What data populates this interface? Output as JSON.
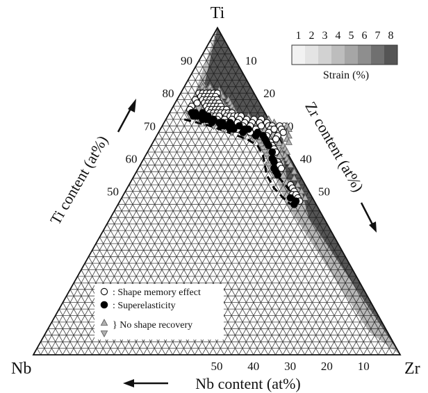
{
  "chart_data": {
    "type": "ternary-scatter",
    "vertices": {
      "top": "Ti",
      "left": "Nb",
      "right": "Zr"
    },
    "axis_labels": {
      "ti": "Ti content (at%)",
      "zr": "Zr content (at%)",
      "nb": "Nb content (at%)"
    },
    "ticks": {
      "ti": [
        "90",
        "80",
        "70",
        "60",
        "50"
      ],
      "zr": [
        "10",
        "20",
        "30",
        "40",
        "50"
      ],
      "nb": [
        "50",
        "40",
        "30",
        "20",
        "10"
      ]
    },
    "colorbar": {
      "title": "Strain (%)",
      "labels": [
        "1",
        "2",
        "3",
        "4",
        "5",
        "6",
        "7",
        "8"
      ],
      "colors": [
        "#f2f2f2",
        "#e4e4e4",
        "#d2d2d2",
        "#bdbdbd",
        "#a6a6a6",
        "#8e8e8e",
        "#707070",
        "#555555"
      ]
    },
    "legend": [
      {
        "marker": "open-circle",
        "label": ": Shape memory effect"
      },
      {
        "marker": "filled-circle",
        "label": ": Superelasticity"
      },
      {
        "marker": "triangles",
        "label": "} No shape recovery"
      }
    ],
    "regions": [
      {
        "name": "high-strain",
        "color": "#555555"
      },
      {
        "name": "medium-strain",
        "color": "#b8b8b8"
      },
      {
        "name": "low-strain",
        "color": "#ffffff"
      }
    ],
    "series": [
      {
        "name": "Shape memory effect",
        "marker": "open-circle",
        "points_ti_zr_at_pct": [
          [
            80,
            5
          ],
          [
            80,
            6
          ],
          [
            80,
            7
          ],
          [
            80,
            8
          ],
          [
            80,
            9
          ],
          [
            80,
            10
          ],
          [
            79,
            6
          ],
          [
            79,
            7
          ],
          [
            79,
            8
          ],
          [
            79,
            9
          ],
          [
            79,
            10
          ],
          [
            78,
            5
          ],
          [
            78,
            7
          ],
          [
            78,
            8
          ],
          [
            78,
            9
          ],
          [
            78,
            10
          ],
          [
            78,
            11
          ],
          [
            77,
            6
          ],
          [
            77,
            8
          ],
          [
            77,
            9
          ],
          [
            77,
            10
          ],
          [
            77,
            11
          ],
          [
            77,
            12
          ],
          [
            76,
            5
          ],
          [
            76,
            9
          ],
          [
            76,
            10
          ],
          [
            76,
            11
          ],
          [
            76,
            12
          ],
          [
            76,
            13
          ],
          [
            75,
            5
          ],
          [
            75,
            10
          ],
          [
            75,
            11
          ],
          [
            75,
            12
          ],
          [
            75,
            13
          ],
          [
            75,
            14
          ],
          [
            75,
            15
          ],
          [
            74,
            11
          ],
          [
            74,
            12
          ],
          [
            74,
            13
          ],
          [
            74,
            14
          ],
          [
            74,
            15
          ],
          [
            74,
            16
          ],
          [
            74,
            17
          ],
          [
            73,
            12
          ],
          [
            73,
            13
          ],
          [
            73,
            14
          ],
          [
            73,
            16
          ],
          [
            73,
            17
          ],
          [
            73,
            18
          ],
          [
            73,
            19
          ],
          [
            73,
            20
          ],
          [
            72,
            14
          ],
          [
            72,
            16
          ],
          [
            72,
            18
          ],
          [
            72,
            20
          ],
          [
            72,
            22
          ],
          [
            72,
            24
          ],
          [
            72,
            26
          ],
          [
            71,
            17
          ],
          [
            71,
            20
          ],
          [
            71,
            22
          ],
          [
            71,
            24
          ],
          [
            71,
            26
          ],
          [
            71,
            28
          ],
          [
            70,
            18
          ],
          [
            70,
            22
          ],
          [
            70,
            24
          ],
          [
            70,
            27
          ],
          [
            70,
            29
          ],
          [
            70,
            30
          ],
          [
            70,
            32
          ],
          [
            69,
            21
          ],
          [
            69,
            26
          ],
          [
            69,
            30
          ],
          [
            69,
            31
          ],
          [
            69,
            33
          ],
          [
            68,
            25
          ],
          [
            68,
            30
          ],
          [
            68,
            34
          ],
          [
            67,
            30
          ],
          [
            67,
            33
          ],
          [
            66,
            33
          ],
          [
            65,
            32
          ],
          [
            64,
            33
          ],
          [
            63,
            34
          ],
          [
            62,
            35
          ],
          [
            59,
            37
          ],
          [
            58,
            38
          ],
          [
            57,
            39
          ],
          [
            52,
            44
          ],
          [
            51,
            45
          ],
          [
            50,
            46
          ],
          [
            49,
            46
          ],
          [
            49,
            47
          ],
          [
            48,
            48
          ],
          [
            47,
            49
          ]
        ]
      },
      {
        "name": "Superelasticity",
        "marker": "filled-circle",
        "points_ti_zr_at_pct": [
          [
            74,
            6
          ],
          [
            74,
            7
          ],
          [
            74,
            9
          ],
          [
            73,
            7
          ],
          [
            73,
            8
          ],
          [
            73,
            9
          ],
          [
            73,
            10
          ],
          [
            73,
            11
          ],
          [
            72,
            10
          ],
          [
            72,
            11
          ],
          [
            72,
            12
          ],
          [
            72,
            13
          ],
          [
            71,
            13
          ],
          [
            71,
            15
          ],
          [
            71,
            16
          ],
          [
            71,
            18
          ],
          [
            70,
            16
          ],
          [
            70,
            17
          ],
          [
            70,
            19
          ],
          [
            70,
            21
          ],
          [
            69,
            19
          ],
          [
            69,
            20
          ],
          [
            69,
            23
          ],
          [
            69,
            24
          ],
          [
            68,
            23
          ],
          [
            68,
            27
          ],
          [
            67,
            27
          ],
          [
            67,
            29
          ],
          [
            66,
            30
          ],
          [
            65,
            31
          ],
          [
            64,
            32
          ],
          [
            62,
            34
          ],
          [
            60,
            35
          ],
          [
            59,
            36
          ],
          [
            57,
            37
          ],
          [
            56,
            38
          ],
          [
            55,
            39
          ],
          [
            48,
            46
          ],
          [
            47,
            48
          ],
          [
            46,
            48
          ]
        ]
      },
      {
        "name": "No shape recovery (Ti-rich side)",
        "marker": "up-triangle",
        "points_ti_zr_at_pct": [
          [
            82,
            5
          ],
          [
            82,
            7
          ],
          [
            81,
            6
          ],
          [
            81,
            8
          ],
          [
            81,
            10
          ],
          [
            80,
            11
          ],
          [
            79,
            12
          ],
          [
            78,
            12
          ],
          [
            78,
            14
          ],
          [
            77,
            13
          ],
          [
            77,
            15
          ],
          [
            76,
            14
          ],
          [
            76,
            16
          ],
          [
            75,
            17
          ],
          [
            74,
            18
          ],
          [
            73,
            22
          ],
          [
            72,
            28
          ],
          [
            71,
            30
          ],
          [
            70,
            34
          ],
          [
            69,
            35
          ],
          [
            68,
            35
          ],
          [
            67,
            36
          ],
          [
            66,
            36
          ],
          [
            65,
            37
          ],
          [
            64,
            36
          ],
          [
            63,
            37
          ],
          [
            62,
            38
          ],
          [
            61,
            38
          ],
          [
            60,
            39
          ],
          [
            59,
            40
          ],
          [
            58,
            41
          ],
          [
            56,
            43
          ],
          [
            54,
            44
          ],
          [
            52,
            46
          ],
          [
            50,
            48
          ],
          [
            48,
            50
          ]
        ]
      },
      {
        "name": "No shape recovery (Nb-rich side)",
        "marker": "down-triangle",
        "points_ti_zr_at_pct": [
          [
            74,
            5
          ],
          [
            73,
            6
          ],
          [
            72,
            9
          ],
          [
            71,
            11
          ],
          [
            70,
            14
          ],
          [
            69,
            17
          ],
          [
            68,
            20
          ],
          [
            67,
            24
          ],
          [
            66,
            27
          ],
          [
            65,
            29
          ],
          [
            64,
            30
          ],
          [
            63,
            31
          ],
          [
            62,
            32
          ],
          [
            61,
            33
          ],
          [
            60,
            34
          ],
          [
            58,
            35
          ],
          [
            57,
            36
          ],
          [
            55,
            38
          ]
        ]
      }
    ]
  }
}
